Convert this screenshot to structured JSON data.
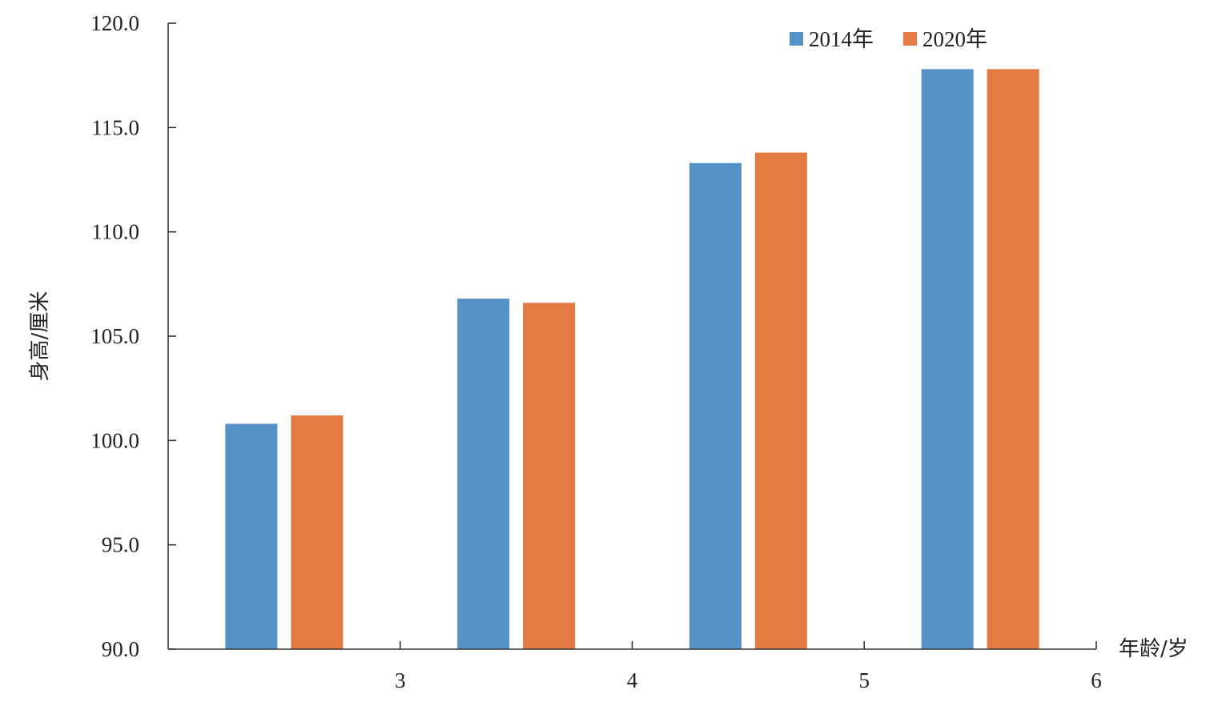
{
  "chart_data": {
    "type": "bar",
    "categories": [
      "3",
      "4",
      "5",
      "6"
    ],
    "series": [
      {
        "name": "2014年",
        "values": [
          100.8,
          106.8,
          113.3,
          117.8
        ],
        "color": "#5592C6"
      },
      {
        "name": "2020年",
        "values": [
          101.2,
          106.6,
          113.8,
          117.8
        ],
        "color": "#E47A42"
      }
    ],
    "ylabel": "身高/厘米",
    "xlabel": "年龄/岁",
    "ylim": [
      90,
      120
    ],
    "yticks": [
      "90.0",
      "95.0",
      "100.0",
      "105.0",
      "110.0",
      "115.0",
      "120.0"
    ],
    "grid": false,
    "legend_position": "top-right"
  }
}
